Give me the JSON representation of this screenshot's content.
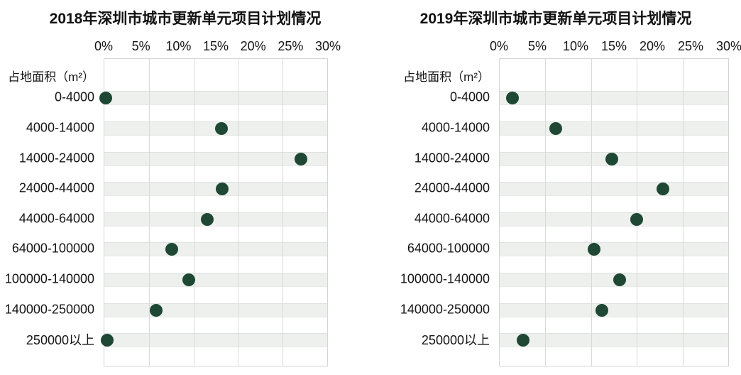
{
  "page": {
    "background_color": "#ffffff",
    "text_color": "#141414"
  },
  "chart_data": [
    {
      "type": "scatter",
      "title": "2018年深圳市城市更新单元项目计划情况",
      "ylabel": "占地面积（m²）",
      "xlabel": "",
      "x_ticks": [
        "0%",
        "5%",
        "10%",
        "15%",
        "20%",
        "25%",
        "30%"
      ],
      "x_tick_values": [
        0,
        5,
        10,
        15,
        20,
        25,
        30
      ],
      "xlim": [
        0,
        30
      ],
      "gridline_step_pct": 6,
      "grid": "vertical",
      "legend": "none",
      "categories": [
        "0-4000",
        "4000-14000",
        "14000-24000",
        "24000-44000",
        "44000-64000",
        "64000-100000",
        "100000-140000",
        "140000-250000",
        "250000以上"
      ],
      "values": [
        0.2,
        15.8,
        26.5,
        15.9,
        13.9,
        9.1,
        11.4,
        7.0,
        0.4
      ],
      "unit": "%",
      "dot_color": "#1e4834",
      "band_color": "#eef0ee"
    },
    {
      "type": "scatter",
      "title": "2019年深圳市城市更新单元项目计划情况",
      "ylabel": "占地面积（m²）",
      "xlabel": "",
      "x_ticks": [
        "0%",
        "5%",
        "10%",
        "15%",
        "20%",
        "25%",
        "30%"
      ],
      "x_tick_values": [
        0,
        5,
        10,
        15,
        20,
        25,
        30
      ],
      "xlim": [
        0,
        30
      ],
      "gridline_step_pct": 6,
      "grid": "vertical",
      "legend": "none",
      "categories": [
        "0-4000",
        "4000-14000",
        "14000-24000",
        "24000-44000",
        "44000-64000",
        "64000-100000",
        "100000-140000",
        "140000-250000",
        "250000以上"
      ],
      "values": [
        1.7,
        7.4,
        14.7,
        21.4,
        18.0,
        12.4,
        15.7,
        13.4,
        3.1
      ],
      "unit": "%",
      "dot_color": "#1e4834",
      "band_color": "#eef0ee"
    }
  ]
}
